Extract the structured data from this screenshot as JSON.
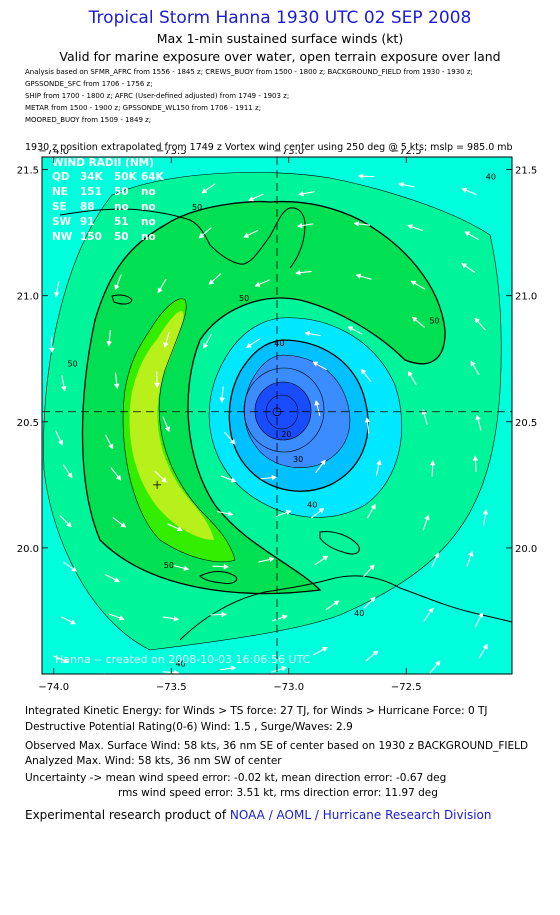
{
  "header": {
    "title": "Tropical Storm Hanna 1930 UTC 02 SEP 2008",
    "subtitle": "Max 1-min sustained surface winds (kt)",
    "valid": "Valid for marine exposure over water, open terrain exposure over land"
  },
  "sources": [
    "Analysis based on   SFMR_AFRC from 1556 - 1845 z;   CREWS_BUOY from 1500 - 1800 z;   BACKGROUND_FIELD from 1930 - 1930 z;",
    "GPSSONDE_SFC from 1706 - 1756 z;",
    "SHIP from 1700 - 1800 z;   AFRC  (User-defined adjusted) from 1749 - 1903 z;",
    "METAR from 1500 - 1900 z;   GPSSONDE_WL150 from 1706 - 1911 z;",
    "MOORED_BUOY from 1509 - 1849 z;"
  ],
  "position_note": "1930 z position extrapolated from 1749 z Vortex wind center using 250 deg @ 5 kts; mslp = 985.0 mb",
  "chart_data": {
    "type": "contour",
    "xlim": [
      -74.05,
      -72.05
    ],
    "ylim": [
      19.5,
      21.55
    ],
    "x_ticks": [
      -74.0,
      -73.5,
      -73.0,
      -72.5
    ],
    "x_tick_labels": [
      "−74.0",
      "−73.5",
      "−73.0",
      "−72.5"
    ],
    "y_ticks": [
      20.0,
      20.5,
      21.0,
      21.5
    ],
    "y_tick_labels": [
      "20.0",
      "20.5",
      "21.0",
      "21.5"
    ],
    "center": {
      "lon": -73.05,
      "lat": 20.54
    },
    "max_wind_marker": {
      "lon": -73.56,
      "lat": 20.25
    },
    "contour_levels": [
      10,
      20,
      30,
      40,
      50
    ],
    "contour_labels": [
      {
        "text": "50",
        "lon": -73.92,
        "lat": 20.72
      },
      {
        "text": "50",
        "lon": -73.39,
        "lat": 21.34
      },
      {
        "text": "50",
        "lon": -73.19,
        "lat": 20.98
      },
      {
        "text": "50",
        "lon": -72.38,
        "lat": 20.89
      },
      {
        "text": "50",
        "lon": -73.51,
        "lat": 19.92
      },
      {
        "text": "40",
        "lon": -73.04,
        "lat": 20.8
      },
      {
        "text": "40",
        "lon": -72.9,
        "lat": 20.16
      },
      {
        "text": "40",
        "lon": -72.7,
        "lat": 19.73
      },
      {
        "text": "40",
        "lon": -73.46,
        "lat": 19.53
      },
      {
        "text": "40",
        "lon": -72.14,
        "lat": 21.46
      },
      {
        "text": "30",
        "lon": -72.96,
        "lat": 20.34
      },
      {
        "text": "20",
        "lon": -73.01,
        "lat": 20.44
      }
    ],
    "wind_radii": {
      "title": "WIND RADII (NM)",
      "columns": [
        "QD",
        "34K",
        "50K",
        "64K"
      ],
      "rows": [
        [
          "NE",
          "151",
          "50",
          "no"
        ],
        [
          "SE",
          "88",
          "no",
          "no"
        ],
        [
          "SW",
          "91",
          "51",
          "no"
        ],
        [
          "NW",
          "150",
          "50",
          "no"
        ]
      ]
    },
    "watermark": "Hanna -- created on 2008-10-03 16:06:56 UTC",
    "colors": {
      "ocean_outer": "#00ffdd",
      "band_40": "#00f59a",
      "band_50": "#00e052",
      "band_55": "#33ee00",
      "band_max": "#b8f01c",
      "inner_30": "#00e8ff",
      "inner_20": "#00c0ff",
      "inner_10": "#3a8cff",
      "core": "#1a4cff"
    }
  },
  "info": {
    "ike": "Integrated Kinetic Energy:  for Winds > TS force: 27 TJ,  for Winds > Hurricane Force: 0 TJ",
    "dpr": "Destructive Potential Rating(0-6)   Wind: 1.5 , Surge/Waves: 2.9",
    "observed": "Observed Max. Surface Wind: 58 kts, 36 nm SE of center based on 1930 z BACKGROUND_FIELD",
    "analyzed": "Analyzed Max. Wind: 58 kts, 36 nm SW of center",
    "uncert1": "Uncertainty -> mean wind speed error:  -0.02 kt,   mean direction error:  -0.67 deg",
    "uncert2": "rms wind speed error: 3.51 kt,   rms direction error: 11.97 deg"
  },
  "footer": {
    "prefix": "Experimental research product of ",
    "org": "NOAA / AOML / Hurricane Research Division"
  }
}
